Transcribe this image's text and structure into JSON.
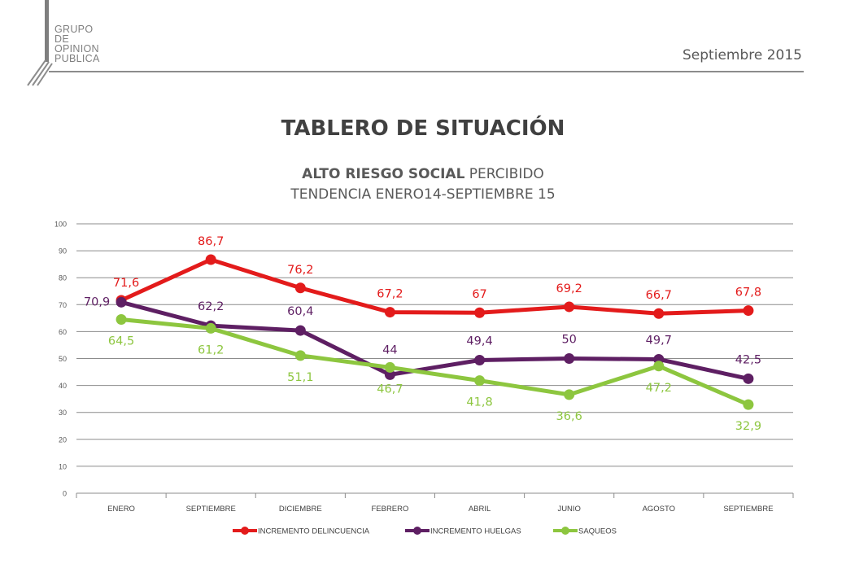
{
  "header": {
    "logo_lines": [
      "GRUPO",
      "DE",
      "OPINION",
      "PUBLICA"
    ],
    "date": "Septiembre 2015"
  },
  "title": "TABLERO DE SITUACIÓN",
  "subtitle_bold": "ALTO RIESGO SOCIAL",
  "subtitle_rest": " PERCIBIDO",
  "subtitle2": "TENDENCIA ENERO14-SEPTIEMBRE 15",
  "chart_data": {
    "type": "line",
    "categories": [
      "ENERO",
      "SEPTIEMBRE",
      "DICIEMBRE",
      "FEBRERO",
      "ABRIL",
      "JUNIO",
      "AGOSTO",
      "SEPTIEMBRE"
    ],
    "ylim": [
      0,
      100
    ],
    "yticks": [
      0,
      10,
      20,
      30,
      40,
      50,
      60,
      70,
      80,
      90,
      100
    ],
    "grid": true,
    "legend_position": "bottom",
    "series": [
      {
        "name": "INCREMENTO DELINCUENCIA",
        "color": "#e31b1b",
        "values": [
          71.6,
          86.7,
          76.2,
          67.2,
          67,
          69.2,
          66.7,
          67.8
        ],
        "labels": [
          "71,6",
          "86,7",
          "76,2",
          "67,2",
          "67",
          "69,2",
          "66,7",
          "67,8"
        ]
      },
      {
        "name": "INCREMENTO HUELGAS",
        "color": "#5e1f63",
        "values": [
          70.9,
          62.2,
          60.4,
          44,
          49.4,
          50,
          49.7,
          42.5
        ],
        "labels": [
          "70,9",
          "62,2",
          "60,4",
          "44",
          "49,4",
          "50",
          "49,7",
          "42,5"
        ]
      },
      {
        "name": "SAQUEOS",
        "color": "#8dc63f",
        "values": [
          64.5,
          61.2,
          51.1,
          46.7,
          41.8,
          36.6,
          47.2,
          32.9
        ],
        "labels": [
          "64,5",
          "61,2",
          "51,1",
          "46,7",
          "41,8",
          "36,6",
          "47,2",
          "32,9"
        ]
      }
    ]
  }
}
